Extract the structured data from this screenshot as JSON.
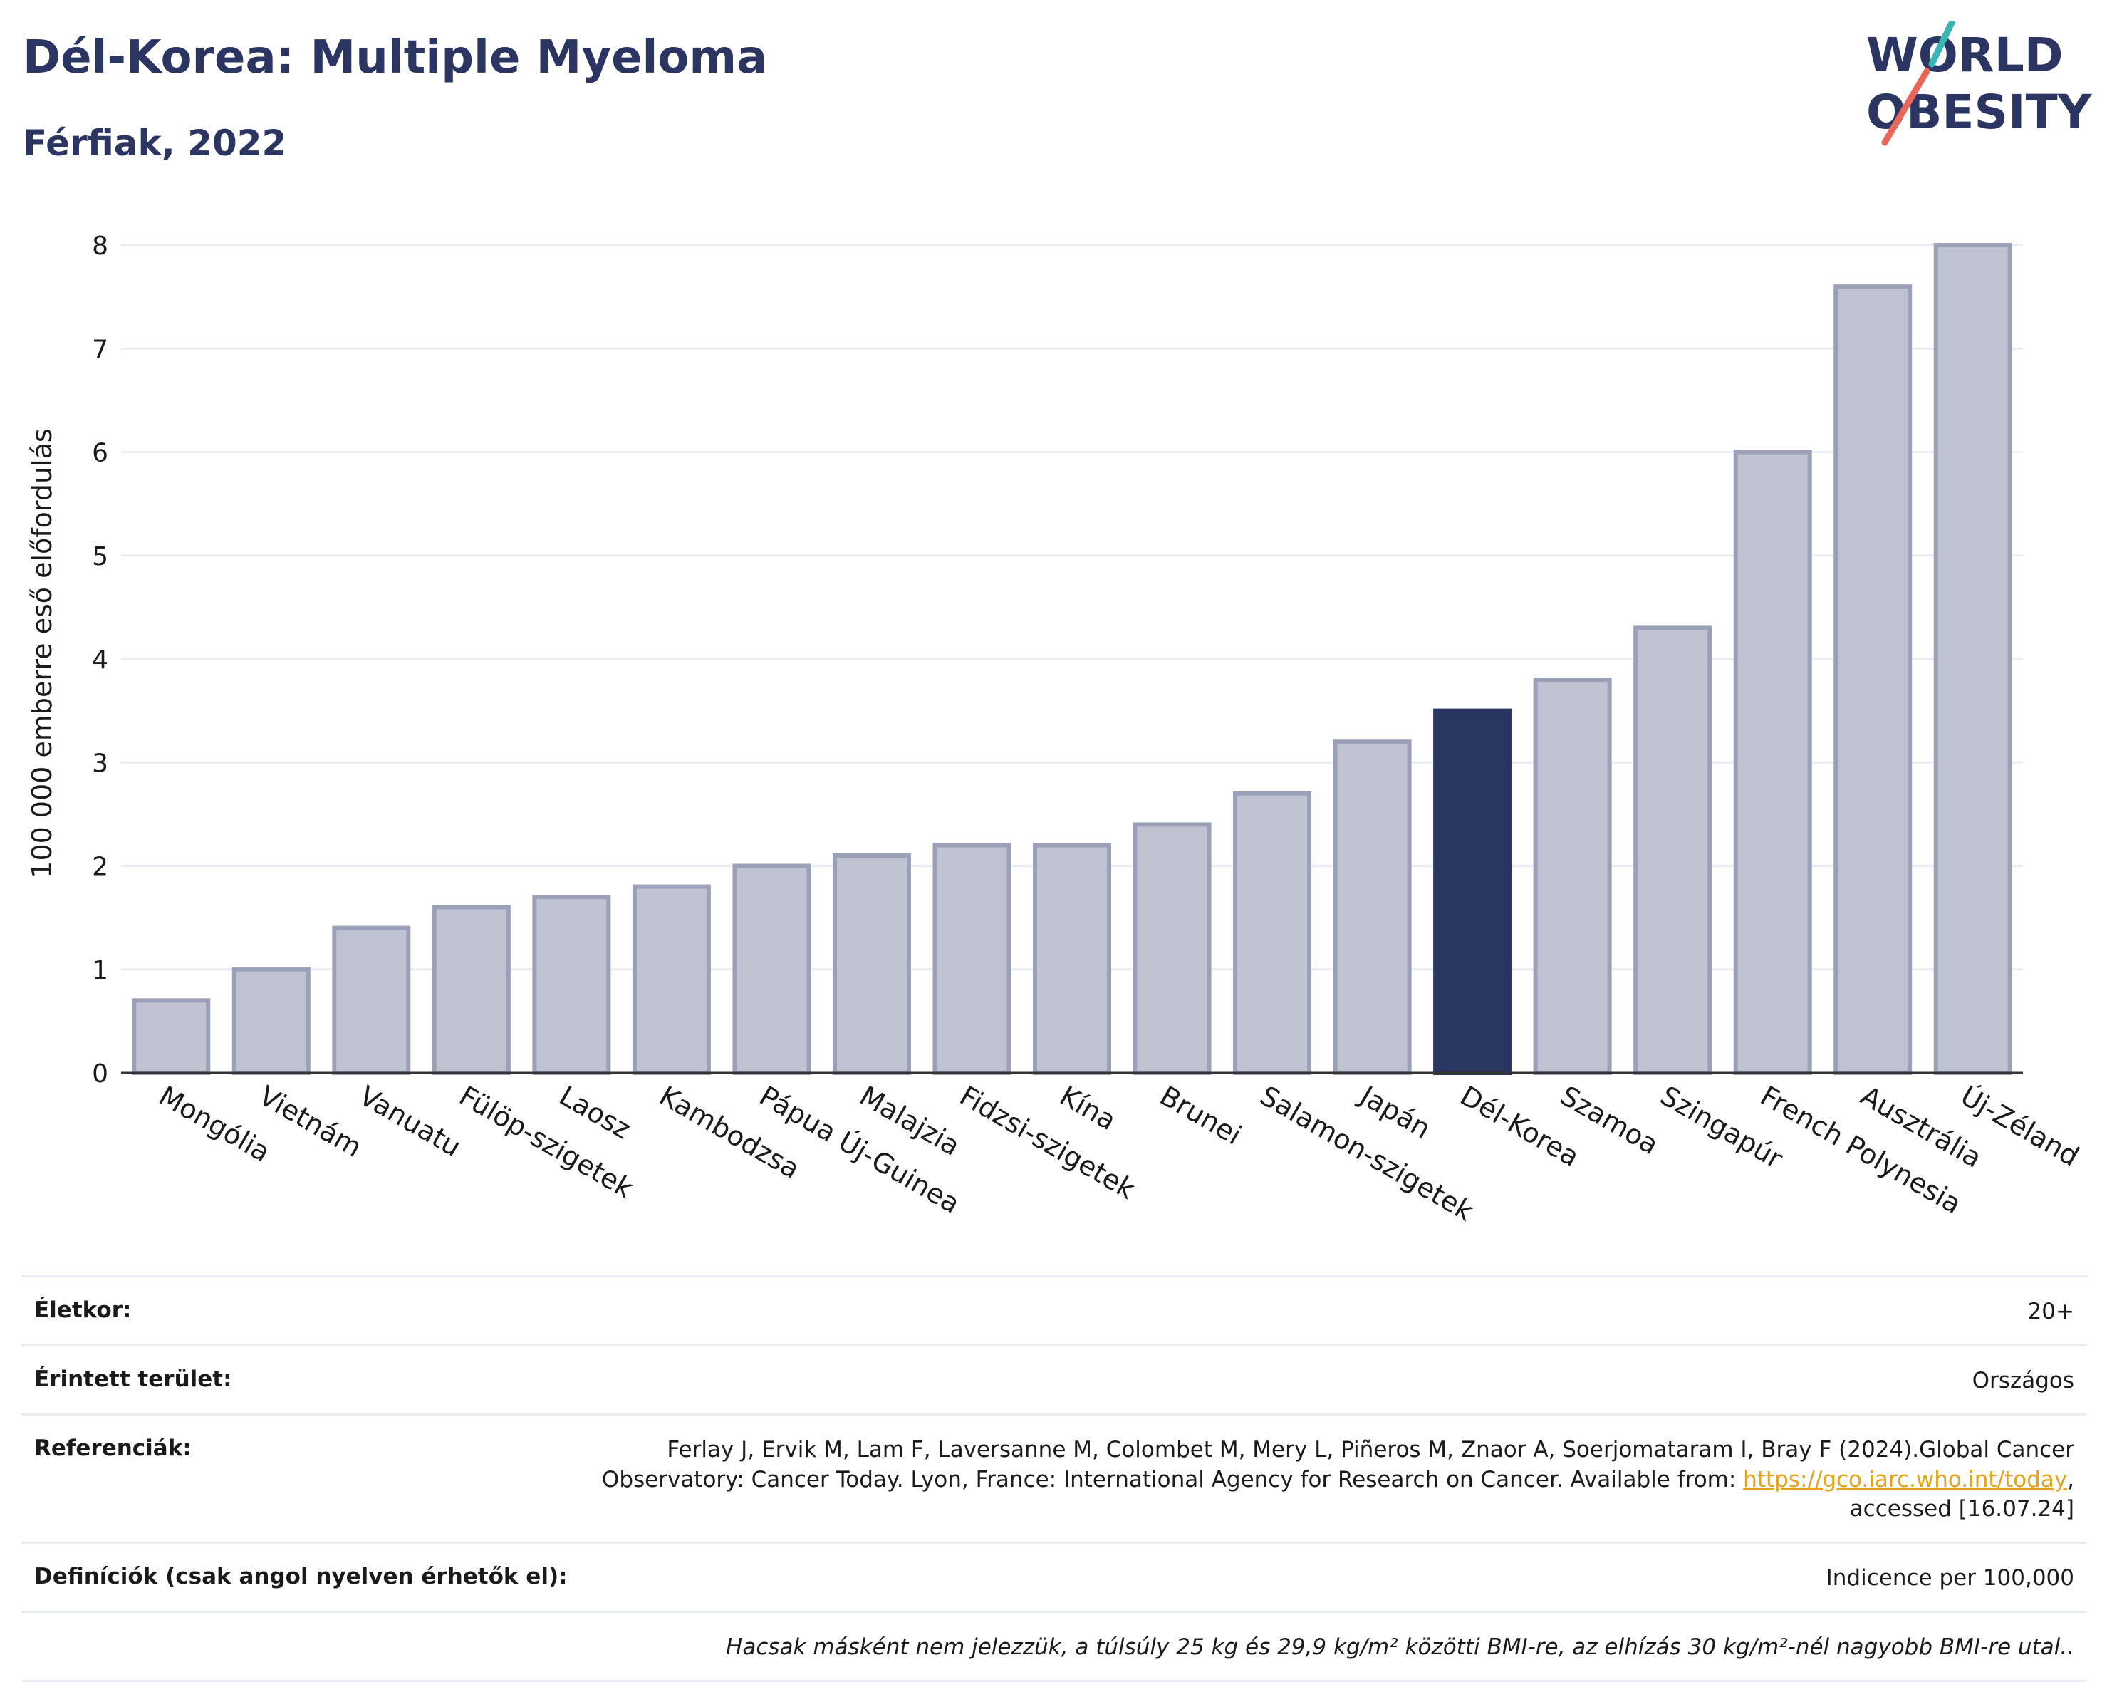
{
  "title": "Dél-Korea: Multiple Myeloma",
  "subtitle": "Férfiak, 2022",
  "logo": {
    "line1": "WORLD",
    "line2": "OBESITY",
    "accent_teal": "#3ab7b4",
    "accent_red": "#e8675a",
    "text_color": "#2b3561"
  },
  "colors": {
    "bar": "#bfc3d1",
    "bar_edge": "#9aa0b8",
    "highlight": "#2b3561",
    "grid": "#e8ebf3",
    "axis": "#333333"
  },
  "chart_data": {
    "type": "bar",
    "title": "Dél-Korea: Multiple Myeloma",
    "subtitle": "Férfiak, 2022",
    "xlabel": "",
    "ylabel": "100 000 emberre eső előfordulás",
    "ylim": [
      0,
      8.2
    ],
    "yticks": [
      0,
      1,
      2,
      3,
      4,
      5,
      6,
      7,
      8
    ],
    "grid": true,
    "highlight": "Dél-Korea",
    "categories": [
      "Mongólia",
      "Vietnám",
      "Vanuatu",
      "Fülöp-szigetek",
      "Laosz",
      "Kambodzsa",
      "Pápua Új-Guinea",
      "Malajzia",
      "Fidzsi-szigetek",
      "Kína",
      "Brunei",
      "Salamon-szigetek",
      "Japán",
      "Dél-Korea",
      "Szamoa",
      "Szingapúr",
      "French Polynesia",
      "Ausztrália",
      "Új-Zéland"
    ],
    "values": [
      0.7,
      1.0,
      1.4,
      1.6,
      1.7,
      1.8,
      2.0,
      2.1,
      2.2,
      2.2,
      2.4,
      2.7,
      3.2,
      3.5,
      3.8,
      4.3,
      6.0,
      7.6,
      8.0
    ]
  },
  "info": {
    "age_label": "Életkor:",
    "age_value": "20+",
    "area_label": "Érintett terület:",
    "area_value": "Országos",
    "ref_label": "Referenciák:",
    "ref_text_1": "Ferlay J, Ervik M, Lam F, Laversanne M, Colombet M, Mery L, Piñeros M, Znaor A, Soerjomataram I, Bray F (2024).Global Cancer",
    "ref_text_2": "Observatory: Cancer Today. Lyon, France: International Agency for Research on Cancer. Available from: ",
    "ref_link": "https://gco.iarc.who.int/today",
    "ref_text_3": ",",
    "ref_text_4": "accessed [16.07.24]",
    "def_label": "Definíciók (csak angol nyelven érhetők el):",
    "def_value": "Indicence per 100,000",
    "note": "Hacsak másként nem jelezzük, a túlsúly 25 kg és 29,9 kg/m² közötti BMI-re, az elhízás 30 kg/m²-nél nagyobb BMI-re utal.."
  }
}
